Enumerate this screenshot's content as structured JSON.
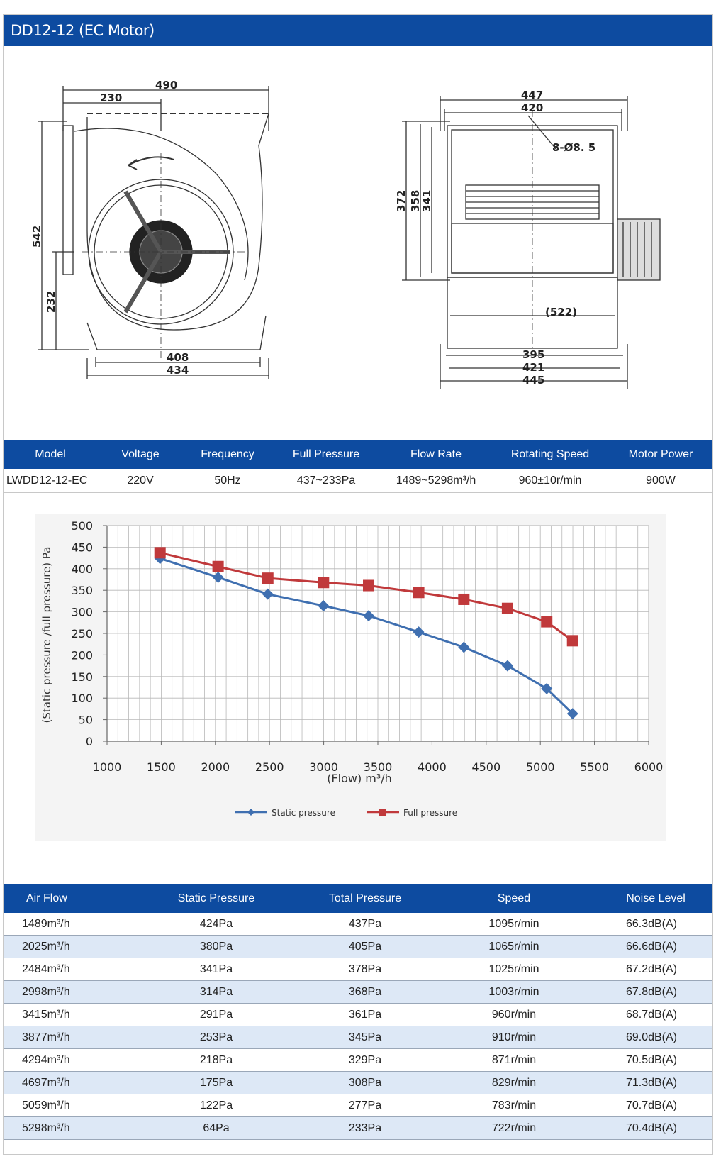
{
  "title": "DD12-12 (EC Motor)",
  "drawing": {
    "front_dims": {
      "top_total": "490",
      "top_inner": "230",
      "height": "542",
      "lower": "232",
      "base_inner": "408",
      "base_outer": "434"
    },
    "side_dims": {
      "top_outer": "447",
      "top_inner": "420",
      "holes": "8-Ø8. 5",
      "h1": "372",
      "h2": "358",
      "h3": "341",
      "mid": "(522)",
      "b1": "395",
      "b2": "421",
      "b3": "445"
    }
  },
  "spec": {
    "headers": [
      "Model",
      "Voltage",
      "Frequency",
      "Full Pressure",
      "Flow Rate",
      "Rotating Speed",
      "Motor Power"
    ],
    "values": [
      "LWDD12-12-EC",
      "220V",
      "50Hz",
      "437~233Pa",
      "1489~5298m³/h",
      "960±10r/min",
      "900W"
    ]
  },
  "chart_data": {
    "type": "line",
    "xlabel": "(Flow) m³/h",
    "ylabel": "(Static pressure /full pressure) Pa",
    "xlim": [
      1000,
      6000
    ],
    "ylim": [
      0,
      500
    ],
    "x_ticks": [
      "1000",
      "1500",
      "2000",
      "2500",
      "3000",
      "3500",
      "4000",
      "4500",
      "5000",
      "5500",
      "6000"
    ],
    "y_ticks": [
      "0",
      "50",
      "100",
      "150",
      "200",
      "250",
      "300",
      "350",
      "400",
      "450",
      "500"
    ],
    "grid": true,
    "legend_position": "bottom",
    "series": [
      {
        "name": "Static pressure",
        "color": "#3f6fb0",
        "marker": "diamond",
        "x": [
          1489,
          2025,
          2484,
          2998,
          3415,
          3877,
          4294,
          4697,
          5059,
          5298
        ],
        "y": [
          424,
          380,
          341,
          314,
          291,
          253,
          218,
          175,
          122,
          64
        ]
      },
      {
        "name": "Full pressure",
        "color": "#c0393b",
        "marker": "square",
        "x": [
          1489,
          2025,
          2484,
          2998,
          3415,
          3877,
          4294,
          4697,
          5059,
          5298
        ],
        "y": [
          437,
          405,
          378,
          368,
          361,
          345,
          329,
          308,
          277,
          233
        ]
      }
    ]
  },
  "table": {
    "headers": [
      "Air Flow",
      "Static Pressure",
      "Total Pressure",
      "Speed",
      "Noise Level"
    ],
    "rows": [
      [
        "1489m³/h",
        "424Pa",
        "437Pa",
        "1095r/min",
        "66.3dB(A)"
      ],
      [
        "2025m³/h",
        "380Pa",
        "405Pa",
        "1065r/min",
        "66.6dB(A)"
      ],
      [
        "2484m³/h",
        "341Pa",
        "378Pa",
        "1025r/min",
        "67.2dB(A)"
      ],
      [
        "2998m³/h",
        "314Pa",
        "368Pa",
        "1003r/min",
        "67.8dB(A)"
      ],
      [
        "3415m³/h",
        "291Pa",
        "361Pa",
        "960r/min",
        "68.7dB(A)"
      ],
      [
        "3877m³/h",
        "253Pa",
        "345Pa",
        "910r/min",
        "69.0dB(A)"
      ],
      [
        "4294m³/h",
        "218Pa",
        "329Pa",
        "871r/min",
        "70.5dB(A)"
      ],
      [
        "4697m³/h",
        "175Pa",
        "308Pa",
        "829r/min",
        "71.3dB(A)"
      ],
      [
        "5059m³/h",
        "122Pa",
        "277Pa",
        "783r/min",
        "70.7dB(A)"
      ],
      [
        "5298m³/h",
        "64Pa",
        "233Pa",
        "722r/min",
        "70.4dB(A)"
      ]
    ]
  }
}
